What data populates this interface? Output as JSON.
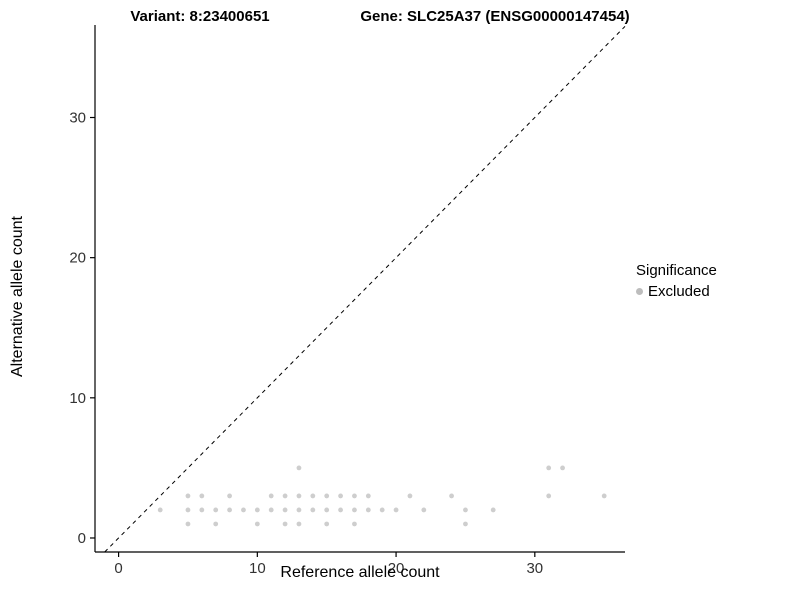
{
  "header": {
    "title_left": "Variant: 8:23400651",
    "title_right": "Gene: SLC25A37 (ENSG00000147454)"
  },
  "legend": {
    "title": "Significance",
    "items": [
      {
        "label": "Excluded",
        "color": "#bdbdbd"
      }
    ]
  },
  "chart_data": {
    "type": "scatter",
    "title": "",
    "xlabel": "Reference allele count",
    "ylabel": "Alternative allele count",
    "xlim": [
      -1.7,
      36.5
    ],
    "ylim": [
      -1.0,
      36.6
    ],
    "xticks": [
      0,
      10,
      20,
      30
    ],
    "yticks": [
      0,
      10,
      20,
      30
    ],
    "grid": false,
    "axis_color": "#000000",
    "tick_label_color": "#333333",
    "diagonal": {
      "style": "dashed",
      "slope": 1,
      "intercept": 0,
      "color": "#000000"
    },
    "series": [
      {
        "name": "Excluded",
        "color": "#bdbdbd",
        "points": [
          [
            3,
            2
          ],
          [
            5,
            1
          ],
          [
            5,
            2
          ],
          [
            5,
            3
          ],
          [
            6,
            2
          ],
          [
            6,
            3
          ],
          [
            7,
            1
          ],
          [
            7,
            2
          ],
          [
            8,
            2
          ],
          [
            8,
            3
          ],
          [
            9,
            2
          ],
          [
            10,
            1
          ],
          [
            10,
            2
          ],
          [
            11,
            2
          ],
          [
            11,
            3
          ],
          [
            12,
            1
          ],
          [
            12,
            2
          ],
          [
            12,
            3
          ],
          [
            13,
            1
          ],
          [
            13,
            2
          ],
          [
            13,
            3
          ],
          [
            13,
            5
          ],
          [
            14,
            2
          ],
          [
            14,
            3
          ],
          [
            15,
            1
          ],
          [
            15,
            2
          ],
          [
            15,
            3
          ],
          [
            16,
            2
          ],
          [
            16,
            3
          ],
          [
            17,
            1
          ],
          [
            17,
            2
          ],
          [
            17,
            3
          ],
          [
            18,
            2
          ],
          [
            18,
            3
          ],
          [
            19,
            2
          ],
          [
            20,
            2
          ],
          [
            21,
            3
          ],
          [
            22,
            2
          ],
          [
            24,
            3
          ],
          [
            25,
            1
          ],
          [
            25,
            2
          ],
          [
            27,
            2
          ],
          [
            31,
            5
          ],
          [
            31,
            3
          ],
          [
            32,
            5
          ],
          [
            35,
            3
          ]
        ]
      }
    ]
  }
}
